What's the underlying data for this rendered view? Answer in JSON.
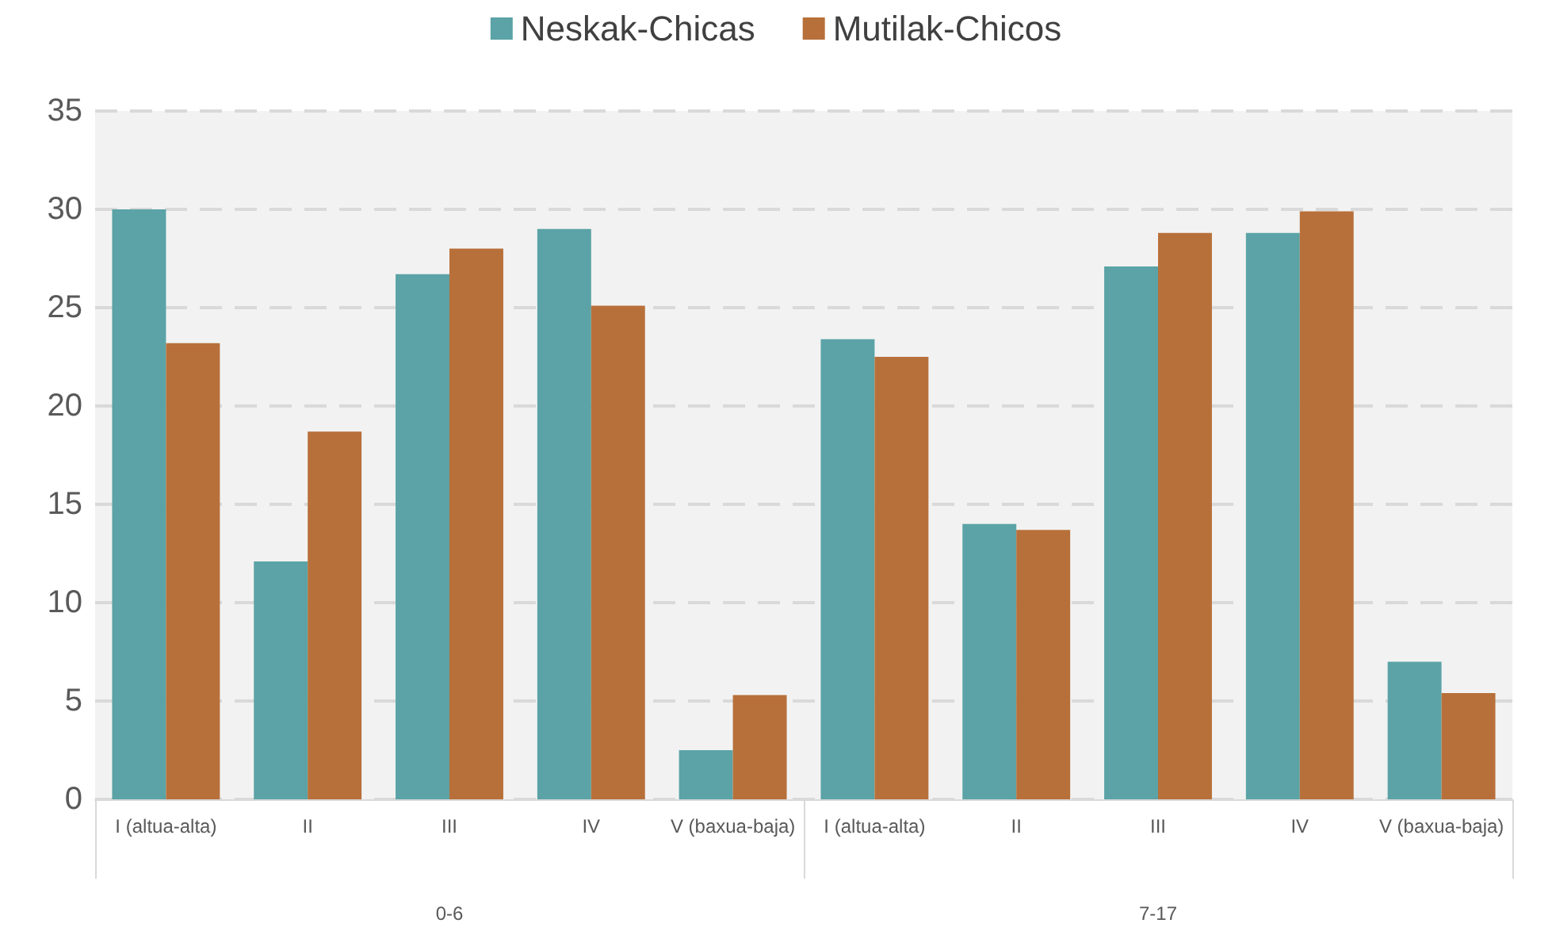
{
  "chart_data": {
    "type": "bar",
    "categories": [
      "I (altua-alta)",
      "II",
      "III",
      "IV",
      "V (baxua-baja)",
      "I (altua-alta)",
      "II",
      "III",
      "IV",
      "V (baxua-baja)"
    ],
    "series": [
      {
        "name": "Neskak-Chicas",
        "color": "#5ba3a6",
        "values": [
          30.0,
          12.1,
          26.7,
          29.0,
          2.5,
          23.4,
          14.0,
          27.1,
          28.8,
          7.0
        ]
      },
      {
        "name": "Mutilak-Chicos",
        "color": "#b8703a",
        "values": [
          23.2,
          18.7,
          28.0,
          25.1,
          5.3,
          22.5,
          13.7,
          28.8,
          29.9,
          5.4
        ]
      }
    ],
    "annotations": [
      "0-6",
      "7-17"
    ],
    "ylim": [
      0,
      35
    ],
    "yticks": [
      0,
      5,
      10,
      15,
      20,
      25,
      30,
      35
    ],
    "grid": "y",
    "legend": "top"
  }
}
